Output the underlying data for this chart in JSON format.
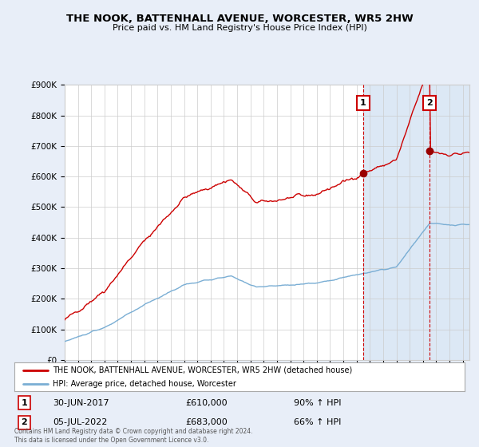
{
  "title": "THE NOOK, BATTENHALL AVENUE, WORCESTER, WR5 2HW",
  "subtitle": "Price paid vs. HM Land Registry's House Price Index (HPI)",
  "ylabel_ticks": [
    "£0",
    "£100K",
    "£200K",
    "£300K",
    "£400K",
    "£500K",
    "£600K",
    "£700K",
    "£800K",
    "£900K"
  ],
  "ytick_values": [
    0,
    100000,
    200000,
    300000,
    400000,
    500000,
    600000,
    700000,
    800000,
    900000
  ],
  "ylim": [
    0,
    900000
  ],
  "background_color": "#e8eef8",
  "plot_bg": "#ffffff",
  "shaded_bg": "#dce8f5",
  "red_color": "#cc0000",
  "blue_color": "#7aaed4",
  "grid_color": "#cccccc",
  "sale1_year": 2017.5,
  "sale1_price": 610000,
  "sale2_year": 2022.5,
  "sale2_price": 683000,
  "annotation1_text": "30-JUN-2017",
  "annotation1_price": "£610,000",
  "annotation1_pct": "90% ↑ HPI",
  "annotation2_text": "05-JUL-2022",
  "annotation2_price": "£683,000",
  "annotation2_pct": "66% ↑ HPI",
  "legend_line1": "THE NOOK, BATTENHALL AVENUE, WORCESTER, WR5 2HW (detached house)",
  "legend_line2": "HPI: Average price, detached house, Worcester",
  "footnote": "Contains HM Land Registry data © Crown copyright and database right 2024.\nThis data is licensed under the Open Government Licence v3.0."
}
